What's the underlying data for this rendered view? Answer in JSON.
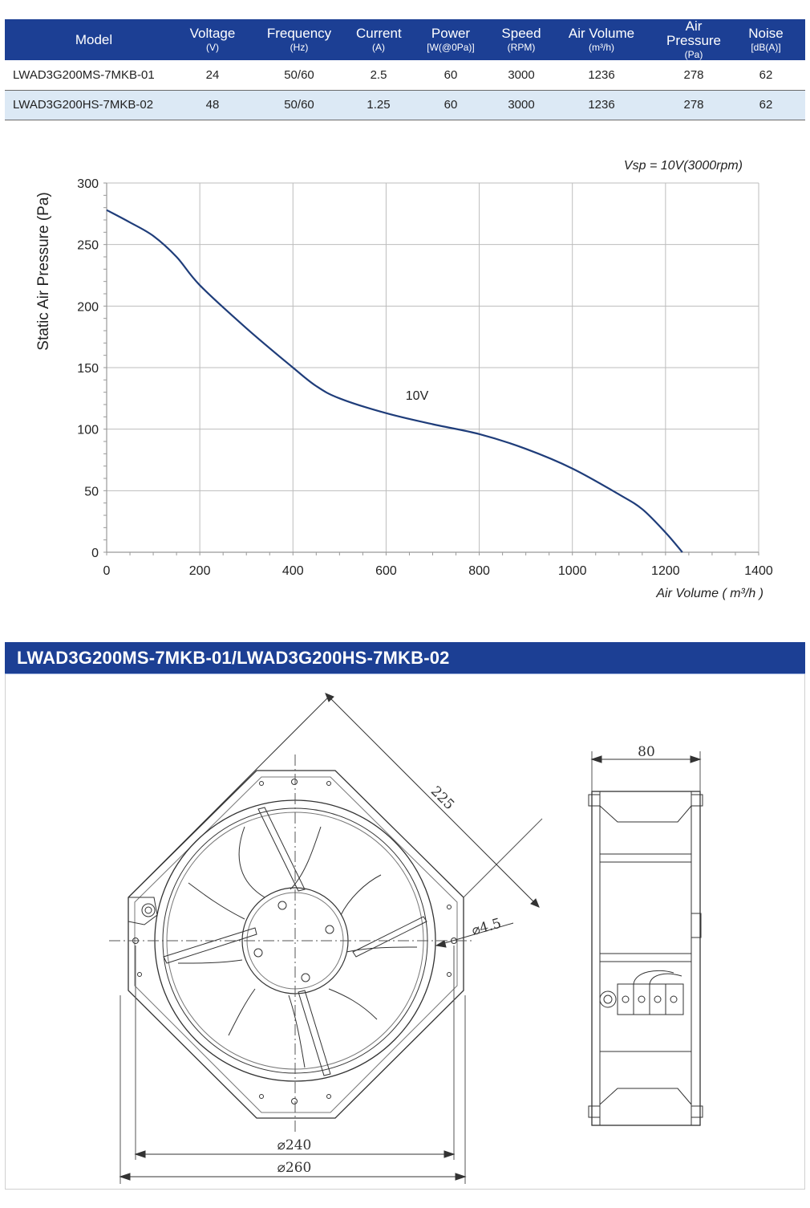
{
  "spec_table": {
    "headers": [
      {
        "name": "Model",
        "unit": ""
      },
      {
        "name": "Voltage",
        "unit": "(V)"
      },
      {
        "name": "Frequency",
        "unit": "(Hz)"
      },
      {
        "name": "Current",
        "unit": "(A)"
      },
      {
        "name": "Power",
        "unit": "[W(@0Pa)]"
      },
      {
        "name": "Speed",
        "unit": "(RPM)"
      },
      {
        "name": "Air Volume",
        "unit": "(m³/h)"
      },
      {
        "name": "Air Pressure",
        "unit": "(Pa)"
      },
      {
        "name": "Noise",
        "unit": "[dB(A)]"
      }
    ],
    "rows": [
      [
        "LWAD3G200MS-7MKB-01",
        "24",
        "50/60",
        "2.5",
        "60",
        "3000",
        "1236",
        "278",
        "62"
      ],
      [
        "LWAD3G200HS-7MKB-02",
        "48",
        "50/60",
        "1.25",
        "60",
        "3000",
        "1236",
        "278",
        "62"
      ]
    ]
  },
  "colors": {
    "header_bg": "#1c3f94",
    "row_alt_bg": "#dce9f5",
    "curve": "#1f3d7a",
    "grid": "#bdbdbd"
  },
  "chart_data": {
    "type": "line",
    "annotation_top": "Vsp = 10V(3000rpm)",
    "xlabel": "Air Volume ( m³/h )",
    "ylabel": "Static Air Pressure  (Pa)",
    "xlim": [
      0,
      1400
    ],
    "ylim": [
      0,
      300
    ],
    "x_ticks": [
      0,
      200,
      400,
      600,
      800,
      1000,
      1200,
      1400
    ],
    "y_ticks": [
      0,
      50,
      100,
      150,
      200,
      250,
      300
    ],
    "grid": true,
    "series": [
      {
        "name": "10V",
        "x": [
          0,
          50,
          100,
          150,
          200,
          300,
          400,
          450,
          500,
          600,
          700,
          800,
          900,
          1000,
          1100,
          1150,
          1200,
          1236
        ],
        "values": [
          278,
          268,
          257,
          240,
          217,
          182,
          150,
          135,
          125,
          113,
          104,
          96,
          84,
          68,
          47,
          35,
          16,
          0
        ]
      }
    ]
  },
  "drawing": {
    "title": "LWAD3G200MS-7MKB-01/LWAD3G200HS-7MKB-02",
    "dimensions": {
      "diagonal": "225",
      "hole": "⌀4.5",
      "inner_circle": "⌀240",
      "outer_circle": "⌀260",
      "depth": "80"
    }
  }
}
